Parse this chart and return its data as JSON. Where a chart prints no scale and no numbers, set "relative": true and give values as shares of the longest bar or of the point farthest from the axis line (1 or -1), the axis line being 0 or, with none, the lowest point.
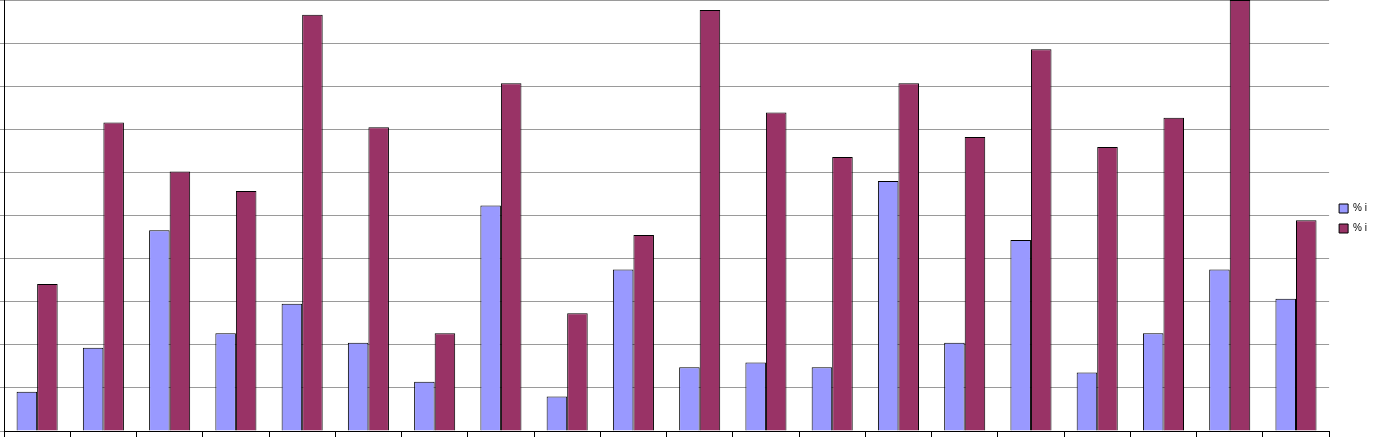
{
  "chart_data": {
    "type": "bar",
    "relative": true,
    "grid": "y",
    "legend": "right",
    "categories": [
      null,
      null,
      null,
      null,
      null,
      null,
      null,
      null,
      null,
      null,
      null,
      null,
      null,
      null,
      null,
      null,
      null,
      null,
      null,
      null
    ],
    "series": [
      {
        "name": "% i",
        "color": "#9999ff",
        "values": [
          0.091,
          0.193,
          0.466,
          0.227,
          0.295,
          0.205,
          0.114,
          0.523,
          0.08,
          0.375,
          0.148,
          0.159,
          0.148,
          0.58,
          0.205,
          0.443,
          0.136,
          0.227,
          0.375,
          0.307
        ]
      },
      {
        "name": "% i",
        "color": "#993366",
        "values": [
          0.341,
          0.716,
          0.602,
          0.557,
          0.966,
          0.705,
          0.227,
          0.807,
          0.273,
          0.455,
          0.977,
          0.739,
          0.636,
          0.807,
          0.682,
          0.886,
          0.659,
          0.727,
          1,
          0.489
        ]
      }
    ]
  }
}
